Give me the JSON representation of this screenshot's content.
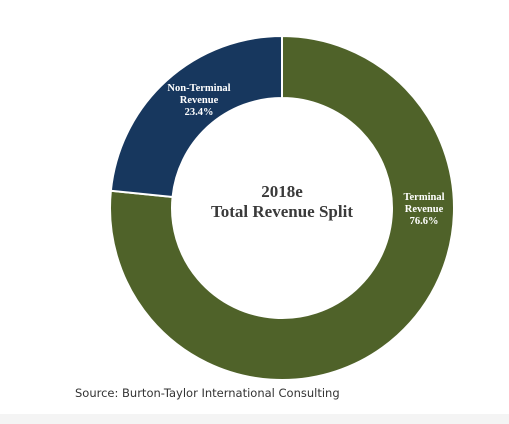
{
  "chart_data": {
    "type": "pie",
    "subtype": "donut",
    "center_title": [
      "2018e",
      "Total Revenue Split"
    ],
    "slices": [
      {
        "label": [
          "Terminal",
          "Revenue",
          "76.6%"
        ],
        "value": 76.6,
        "color": "#4f6229"
      },
      {
        "label": [
          "Non-Terminal",
          "Revenue",
          "23.4%"
        ],
        "value": 23.4,
        "color": "#17375e"
      }
    ],
    "start": "12 o'clock",
    "direction": "clockwise",
    "legend": "none"
  },
  "source": "Source: Burton-Taylor International Consulting",
  "colors": {
    "background": "#ffffff",
    "separator": "#ffffff"
  }
}
